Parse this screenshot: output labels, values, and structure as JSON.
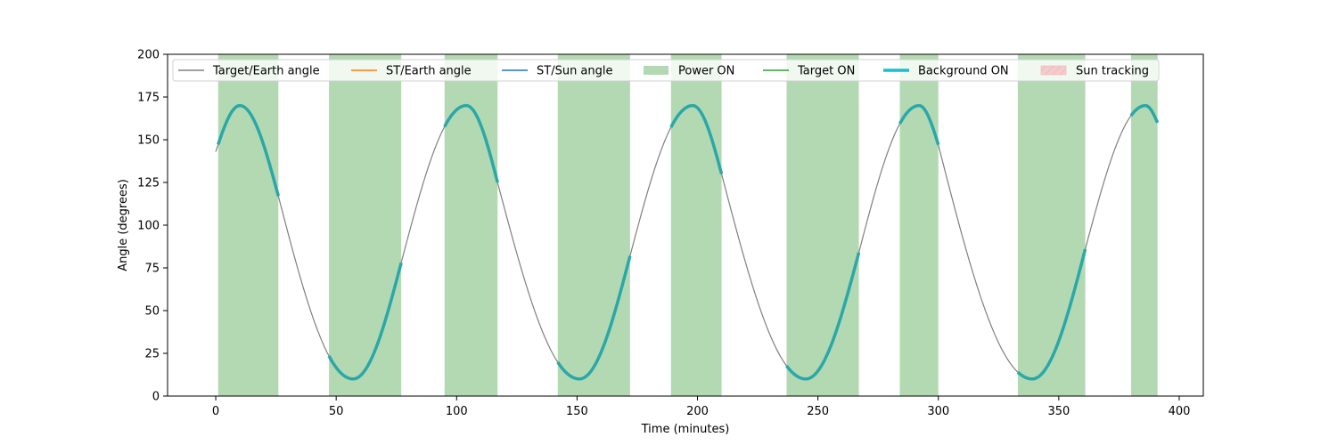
{
  "colors": {
    "target_earth": "#808080",
    "st_earth": "#ff7f0e",
    "st_sun": "#1f77b4",
    "power_on": "#b3d9b3",
    "target_on": "#2ca02c",
    "background_on": "#2aa8a8",
    "background_on_legend": "#17becf",
    "sun_tracking": "#f4cccc"
  },
  "chart_data": {
    "type": "line",
    "title": "",
    "xlabel": "Time (minutes)",
    "ylabel": "Angle (degrees)",
    "xlim": [
      -20,
      410
    ],
    "ylim": [
      0,
      200
    ],
    "x_ticks": [
      0,
      50,
      100,
      150,
      200,
      250,
      300,
      350,
      400
    ],
    "y_ticks": [
      0,
      25,
      50,
      75,
      100,
      125,
      150,
      175,
      200
    ],
    "legend": {
      "placement": "top",
      "entries": [
        {
          "label": "Target/Earth angle",
          "style": "line",
          "color_key": "target_earth"
        },
        {
          "label": "ST/Earth angle",
          "style": "line",
          "color_key": "st_earth"
        },
        {
          "label": "ST/Sun angle",
          "style": "line",
          "color_key": "st_sun"
        },
        {
          "label": "Power ON",
          "style": "patch",
          "color_key": "power_on"
        },
        {
          "label": "Target ON",
          "style": "line",
          "color_key": "target_on"
        },
        {
          "label": "Background ON",
          "style": "thickline",
          "color_key": "background_on_legend"
        },
        {
          "label": "Sun tracking",
          "style": "hatch",
          "color_key": "sun_tracking"
        }
      ]
    },
    "power_on_intervals": [
      [
        1,
        26
      ],
      [
        47,
        77
      ],
      [
        95,
        117
      ],
      [
        142,
        172
      ],
      [
        189,
        210
      ],
      [
        237,
        267
      ],
      [
        284,
        300
      ],
      [
        333,
        361
      ],
      [
        380,
        391
      ]
    ],
    "target_earth_angle": {
      "x": [
        0,
        10,
        26,
        57,
        77,
        104,
        117,
        151,
        172,
        198,
        210,
        245,
        267,
        292,
        300,
        339,
        361,
        386,
        391
      ],
      "y": [
        143,
        170,
        117,
        10,
        78,
        170,
        125,
        10,
        82,
        170,
        130,
        10,
        84,
        170,
        147,
        10,
        86,
        170,
        160
      ]
    }
  }
}
